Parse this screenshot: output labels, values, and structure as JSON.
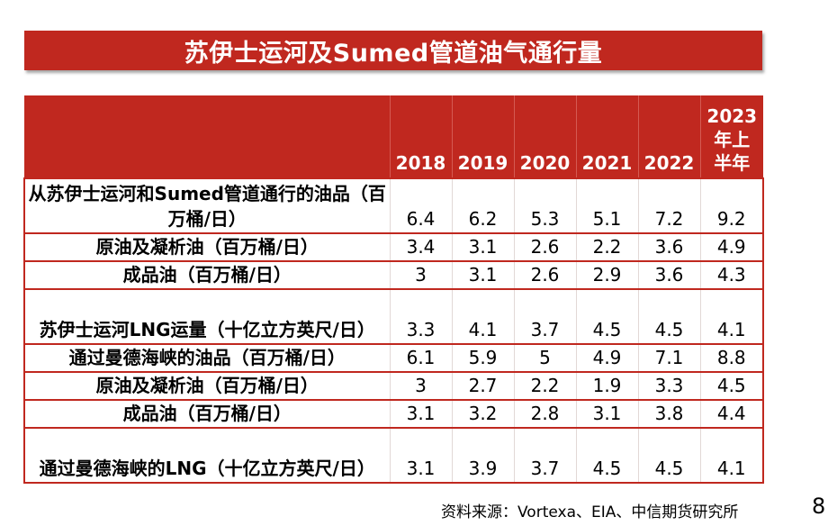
{
  "title": "苏伊士运河及Sumed管道油气通行量",
  "table": {
    "columns": [
      "2018",
      "2019",
      "2020",
      "2021",
      "2022",
      "2023年上半年"
    ],
    "column_lines": [
      [
        "2018"
      ],
      [
        "2019"
      ],
      [
        "2020"
      ],
      [
        "2021"
      ],
      [
        "2022"
      ],
      [
        "2023",
        "年上",
        "半年"
      ]
    ],
    "rows": [
      {
        "label": "从苏伊士运河和Sumed管道通行的油品（百万桶/日）",
        "values": [
          "6.4",
          "6.2",
          "5.3",
          "5.1",
          "7.2",
          "9.2"
        ]
      },
      {
        "label": "原油及凝析油（百万桶/日）",
        "values": [
          "3.4",
          "3.1",
          "2.6",
          "2.2",
          "3.6",
          "4.9"
        ]
      },
      {
        "label": "成品油（百万桶/日）",
        "values": [
          "3",
          "3.1",
          "2.6",
          "2.9",
          "3.6",
          "4.3"
        ]
      },
      {
        "label": "苏伊士运河LNG运量（十亿立方英尺/日）",
        "values": [
          "3.3",
          "4.1",
          "3.7",
          "4.5",
          "4.5",
          "4.1"
        ]
      },
      {
        "label": "通过曼德海峡的油品（百万桶/日）",
        "values": [
          "6.1",
          "5.9",
          "5",
          "4.9",
          "7.1",
          "8.8"
        ]
      },
      {
        "label": "原油及凝析油（百万桶/日）",
        "values": [
          "3",
          "2.7",
          "2.2",
          "1.9",
          "3.3",
          "4.5"
        ]
      },
      {
        "label": "成品油（百万桶/日）",
        "values": [
          "3.1",
          "3.2",
          "2.8",
          "3.1",
          "3.8",
          "4.4"
        ]
      },
      {
        "label": "通过曼德海峡的LNG（十亿立方英尺/日）",
        "values": [
          "3.1",
          "3.9",
          "3.7",
          "4.5",
          "4.5",
          "4.1"
        ]
      }
    ]
  },
  "source": "资料来源：Vortexa、EIA、中信期货研究所",
  "page_number": "8",
  "colors": {
    "header_red": "#c0281f",
    "text": "#000000",
    "header_text": "#ffffff"
  }
}
